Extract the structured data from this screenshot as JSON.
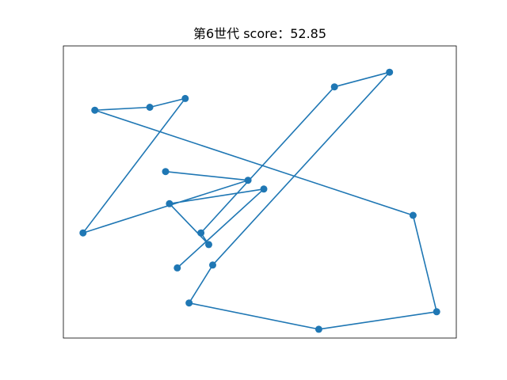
{
  "chart_data": {
    "type": "line",
    "title": "第6世代 score：52.85",
    "xlabel": "",
    "ylabel": "",
    "axes_ticks": "none",
    "grid": false,
    "line_color": "#1f77b4",
    "marker": "circle",
    "points": [
      {
        "x": 0.29,
        "y": 0.24
      },
      {
        "x": 0.51,
        "y": 0.51
      },
      {
        "x": 0.27,
        "y": 0.46
      },
      {
        "x": 0.37,
        "y": 0.32
      },
      {
        "x": 0.35,
        "y": 0.36
      },
      {
        "x": 0.69,
        "y": 0.86
      },
      {
        "x": 0.83,
        "y": 0.91
      },
      {
        "x": 0.38,
        "y": 0.25
      },
      {
        "x": 0.32,
        "y": 0.12
      },
      {
        "x": 0.65,
        "y": 0.03
      },
      {
        "x": 0.95,
        "y": 0.09
      },
      {
        "x": 0.89,
        "y": 0.42
      },
      {
        "x": 0.08,
        "y": 0.78
      },
      {
        "x": 0.22,
        "y": 0.79
      },
      {
        "x": 0.31,
        "y": 0.82
      },
      {
        "x": 0.05,
        "y": 0.36
      },
      {
        "x": 0.47,
        "y": 0.54
      },
      {
        "x": 0.26,
        "y": 0.57
      }
    ]
  }
}
